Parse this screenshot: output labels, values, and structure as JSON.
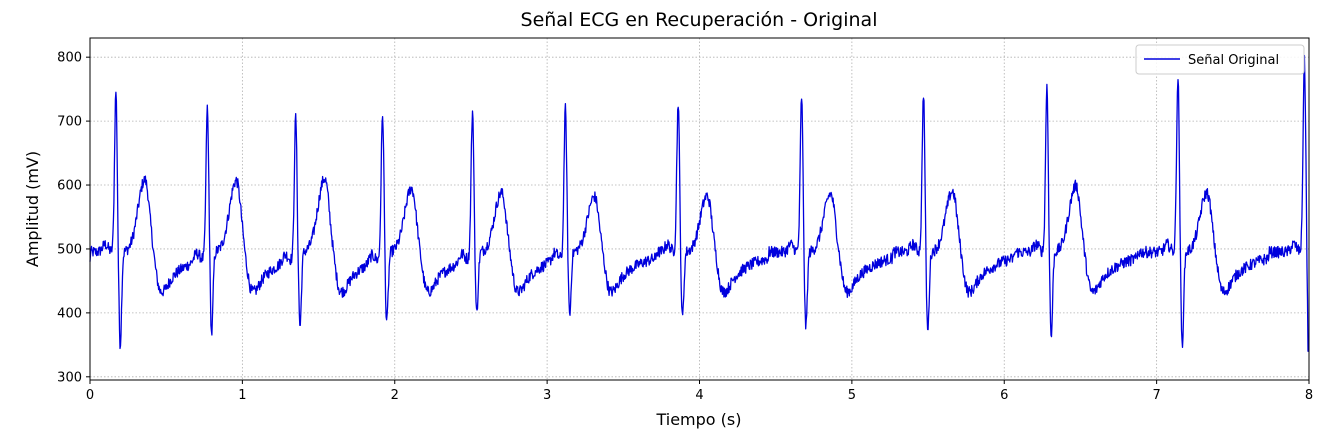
{
  "chart_data": {
    "type": "line",
    "title": "Señal ECG en Recuperación - Original",
    "xlabel": "Tiempo (s)",
    "ylabel": "Amplitud (mV)",
    "xlim": [
      0,
      8
    ],
    "ylim": [
      295,
      830
    ],
    "xticks": [
      0,
      1,
      2,
      3,
      4,
      5,
      6,
      7,
      8
    ],
    "yticks": [
      300,
      400,
      500,
      600,
      700,
      800
    ],
    "grid": true,
    "legend": {
      "position": "top-right"
    },
    "series": [
      {
        "name": "Señal Original",
        "color": "#0000dd",
        "baseline": 495,
        "start_value": 480,
        "end_value": 340,
        "beats": [
          {
            "r_time": 0.17,
            "r_peak": 748,
            "s_trough": 348,
            "t_peak": 608
          },
          {
            "r_time": 0.77,
            "r_peak": 721,
            "s_trough": 365,
            "t_peak": 607
          },
          {
            "r_time": 1.35,
            "r_peak": 718,
            "s_trough": 377,
            "t_peak": 610
          },
          {
            "r_time": 1.92,
            "r_peak": 722,
            "s_trough": 385,
            "t_peak": 595
          },
          {
            "r_time": 2.51,
            "r_peak": 723,
            "s_trough": 397,
            "t_peak": 588
          },
          {
            "r_time": 3.12,
            "r_peak": 720,
            "s_trough": 395,
            "t_peak": 582
          },
          {
            "r_time": 3.86,
            "r_peak": 731,
            "s_trough": 390,
            "t_peak": 583
          },
          {
            "r_time": 4.67,
            "r_peak": 739,
            "s_trough": 376,
            "t_peak": 586
          },
          {
            "r_time": 5.47,
            "r_peak": 745,
            "s_trough": 370,
            "t_peak": 590
          },
          {
            "r_time": 6.28,
            "r_peak": 755,
            "s_trough": 360,
            "t_peak": 599
          },
          {
            "r_time": 7.14,
            "r_peak": 767,
            "s_trough": 347,
            "t_peak": 588
          },
          {
            "r_time": 7.97,
            "r_peak": 795,
            "s_trough": 340,
            "t_peak": null
          }
        ]
      }
    ]
  }
}
